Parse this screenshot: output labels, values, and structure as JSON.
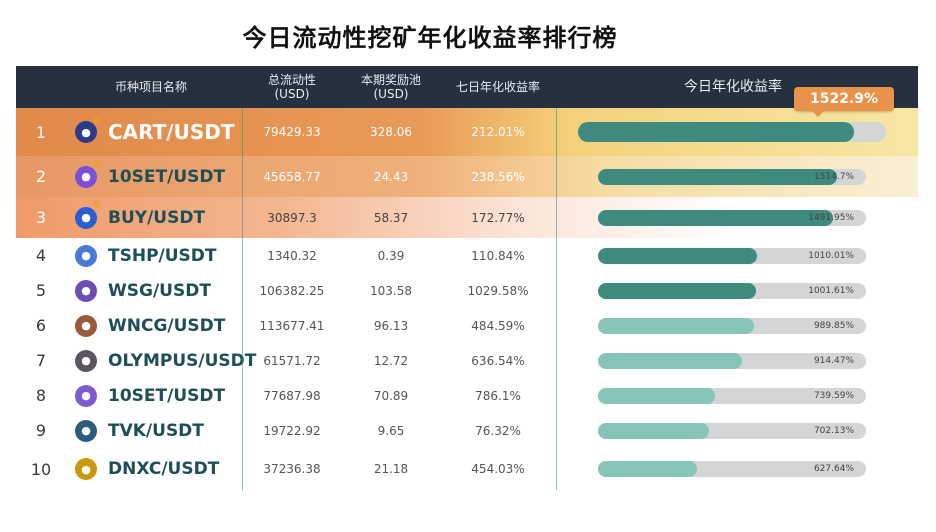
{
  "title": "今日流动性挖矿年化收益率排行榜",
  "header": {
    "pair_col": "币种项目名称",
    "tvl_col_line1": "总流动性",
    "tvl_col_line2": "(USD)",
    "pool_col_line1": "本期奖励池",
    "pool_col_line2": "(USD)",
    "apr7_col": "七日年化收益率",
    "apr_today_col": "今日年化收益率"
  },
  "callout": "1522.9%",
  "colors": {
    "header_bg": "#26313f",
    "bar_dark": "#3f8a7e",
    "bar_light": "#86c5b8",
    "track": "#d3d5d6",
    "gold_row": "#e2924f",
    "callout": "#e9924a"
  },
  "rows": [
    {
      "rank": "1",
      "pair": "CART/USDT",
      "tvl": "79429.33",
      "pool": "328.06",
      "apr7": "212.01%",
      "apr_today": "",
      "apr_value": 1522.9,
      "icon": "cart-coin-icon"
    },
    {
      "rank": "2",
      "pair": "10SET/USDT",
      "tvl": "45658.77",
      "pool": "24.43",
      "apr7": "238.56%",
      "apr_today": "1514.7%",
      "apr_value": 1514.7,
      "icon": "tenset-coin-icon"
    },
    {
      "rank": "3",
      "pair": "BUY/USDT",
      "tvl": "30897.3",
      "pool": "58.37",
      "apr7": "172.77%",
      "apr_today": "1491.95%",
      "apr_value": 1491.95,
      "icon": "buy-coin-icon"
    },
    {
      "rank": "4",
      "pair": "TSHP/USDT",
      "tvl": "1340.32",
      "pool": "0.39",
      "apr7": "110.84%",
      "apr_today": "1010.01%",
      "apr_value": 1010.01,
      "icon": "tshp-coin-icon"
    },
    {
      "rank": "5",
      "pair": "WSG/USDT",
      "tvl": "106382.25",
      "pool": "103.58",
      "apr7": "1029.58%",
      "apr_today": "1001.61%",
      "apr_value": 1001.61,
      "icon": "wsg-coin-icon"
    },
    {
      "rank": "6",
      "pair": "WNCG/USDT",
      "tvl": "113677.41",
      "pool": "96.13",
      "apr7": "484.59%",
      "apr_today": "989.85%",
      "apr_value": 989.85,
      "icon": "wncg-coin-icon"
    },
    {
      "rank": "7",
      "pair": "OLYMPUS/USDT",
      "tvl": "61571.72",
      "pool": "12.72",
      "apr7": "636.54%",
      "apr_today": "914.47%",
      "apr_value": 914.47,
      "icon": "olympus-coin-icon"
    },
    {
      "rank": "8",
      "pair": "10SET/USDT",
      "tvl": "77687.98",
      "pool": "70.89",
      "apr7": "786.1%",
      "apr_today": "739.59%",
      "apr_value": 739.59,
      "icon": "tenset-coin-icon"
    },
    {
      "rank": "9",
      "pair": "TVK/USDT",
      "tvl": "19722.92",
      "pool": "9.65",
      "apr7": "76.32%",
      "apr_today": "702.13%",
      "apr_value": 702.13,
      "icon": "tvk-coin-icon"
    },
    {
      "rank": "10",
      "pair": "DNXC/USDT",
      "tvl": "37236.38",
      "pool": "21.18",
      "apr7": "454.03%",
      "apr_today": "627.64%",
      "apr_value": 627.64,
      "icon": "dnxc-coin-icon"
    }
  ]
}
